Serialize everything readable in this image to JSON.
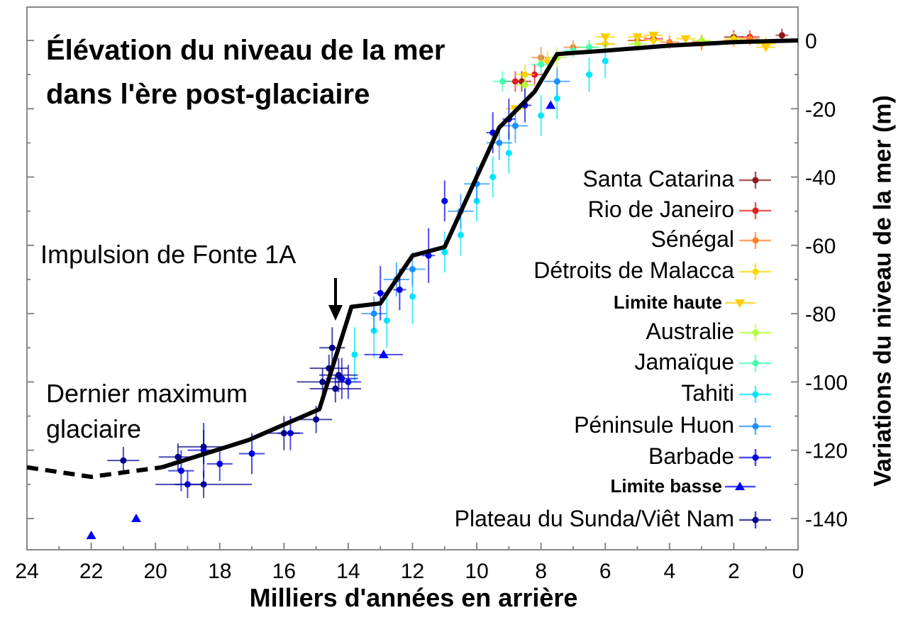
{
  "chart_data": {
    "type": "scatter",
    "title": [
      "Élévation du niveau de la mer",
      "dans l'ère post-glaciaire"
    ],
    "xlabel": "Milliers d'années en arrière",
    "ylabel": "Variations du niveau de la mer (m)",
    "xlim": [
      24,
      0
    ],
    "ylim": [
      -149,
      10
    ],
    "x_ticks": [
      24,
      22,
      20,
      18,
      16,
      14,
      12,
      10,
      8,
      6,
      4,
      2,
      0
    ],
    "y_ticks": [
      0,
      -20,
      -40,
      -60,
      -80,
      -100,
      -120,
      -140
    ],
    "grid": false,
    "legend_placement": "right",
    "annotations": [
      {
        "text": "Impulsion de Fonte 1A",
        "points_to": [
          14.4,
          -80
        ]
      },
      {
        "text": "Dernier maximum glaciaire"
      }
    ],
    "curve": {
      "dashed": [
        [
          24,
          -125
        ],
        [
          22,
          -127.8
        ],
        [
          21,
          -126.5
        ],
        [
          19.8,
          -125
        ]
      ],
      "solid": [
        [
          19.8,
          -125
        ],
        [
          17.1,
          -117
        ],
        [
          14.9,
          -108
        ],
        [
          13.9,
          -78
        ],
        [
          13,
          -77
        ],
        [
          12,
          -63
        ],
        [
          11,
          -60.5
        ],
        [
          9.3,
          -25.5
        ],
        [
          8.2,
          -15
        ],
        [
          7.5,
          -4
        ],
        [
          6,
          -3
        ],
        [
          4,
          -1.5
        ],
        [
          2,
          -0.5
        ],
        [
          0,
          0
        ]
      ]
    },
    "series": [
      {
        "name": "Santa Catarina",
        "marker": "dot",
        "color": "#8b1a1a",
        "points": [
          [
            8.6,
            -12,
            0.3,
            3
          ],
          [
            5,
            0,
            0.3,
            2
          ],
          [
            2,
            1,
            0.3,
            2
          ],
          [
            0.5,
            1.5,
            0.2,
            2
          ]
        ]
      },
      {
        "name": "Rio de Janeiro",
        "marker": "dot",
        "color": "#e31a1c",
        "points": [
          [
            8.8,
            -12,
            0.3,
            3
          ],
          [
            8.2,
            -10,
            0.3,
            3
          ],
          [
            4.5,
            0.5,
            0.3,
            2
          ],
          [
            3,
            -0.5,
            0.3,
            2
          ],
          [
            1.5,
            1,
            0.3,
            2
          ]
        ]
      },
      {
        "name": "Sénégal",
        "marker": "dot",
        "color": "#ff7f27",
        "points": [
          [
            8,
            -5,
            0.3,
            3
          ],
          [
            7,
            -2,
            0.3,
            2
          ],
          [
            6,
            -1,
            0.3,
            2
          ],
          [
            5,
            0,
            0.3,
            2
          ],
          [
            4,
            -0.5,
            0.3,
            2
          ],
          [
            3,
            -1,
            0.3,
            2
          ],
          [
            2,
            0,
            0.3,
            2
          ],
          [
            1.5,
            0.5,
            0.3,
            2
          ]
        ]
      },
      {
        "name": "Détroits de Malacca",
        "marker": "dot",
        "color": "#ffd700",
        "points": [
          [
            8.5,
            -10,
            0.3,
            3
          ],
          [
            7.8,
            -6,
            0.3,
            3
          ],
          [
            6,
            -1,
            0.3,
            2
          ],
          [
            4.5,
            0,
            0.3,
            2
          ],
          [
            2,
            0.5,
            0.3,
            2
          ],
          [
            1,
            -1,
            0.3,
            2
          ]
        ]
      },
      {
        "name": "Limite haute",
        "marker": "triangle-down",
        "color": "#ffcc00",
        "points": [
          [
            6,
            1,
            0.3,
            0
          ],
          [
            5,
            1,
            0.3,
            0
          ],
          [
            4.5,
            1.5,
            0.3,
            0
          ],
          [
            3.5,
            0.5,
            0.3,
            0
          ],
          [
            1,
            -2,
            0.3,
            0
          ],
          [
            8.8,
            -20,
            0.3,
            0
          ]
        ]
      },
      {
        "name": "Australie",
        "marker": "dot",
        "color": "#b3ff33",
        "points": [
          [
            8.5,
            -13,
            0.3,
            3
          ],
          [
            7.5,
            -5,
            0.3,
            3
          ],
          [
            6.5,
            -2,
            0.3,
            2
          ],
          [
            5,
            -1,
            0.3,
            2
          ],
          [
            3,
            0,
            0.3,
            2
          ]
        ]
      },
      {
        "name": "Jamaïque",
        "marker": "dot",
        "color": "#40ffb0",
        "points": [
          [
            9.2,
            -12,
            0.3,
            3
          ],
          [
            8,
            -7,
            0.3,
            3
          ],
          [
            7,
            -3,
            0.3,
            2
          ],
          [
            6.5,
            -2,
            0.3,
            2
          ]
        ]
      },
      {
        "name": "Tahiti",
        "marker": "dot",
        "color": "#00e5ff",
        "points": [
          [
            13.8,
            -92,
            0.1,
            8
          ],
          [
            13.2,
            -85,
            0.1,
            8
          ],
          [
            12.8,
            -82,
            0.1,
            8
          ],
          [
            12,
            -75,
            0.1,
            8
          ],
          [
            11,
            -62,
            0.1,
            6
          ],
          [
            10.5,
            -57,
            0.1,
            6
          ],
          [
            10,
            -47,
            0.1,
            6
          ],
          [
            9.5,
            -40,
            0.1,
            6
          ],
          [
            9,
            -33,
            0.1,
            6
          ],
          [
            8,
            -22,
            0.1,
            6
          ],
          [
            7.5,
            -17,
            0.1,
            6
          ],
          [
            6.5,
            -10,
            0.1,
            5
          ],
          [
            6,
            -6,
            0.1,
            5
          ]
        ]
      },
      {
        "name": "Péninsule Huon",
        "marker": "dot",
        "color": "#1e90ff",
        "points": [
          [
            13.2,
            -80,
            0.4,
            5
          ],
          [
            12.5,
            -70,
            0.4,
            5
          ],
          [
            12,
            -67,
            0.4,
            5
          ],
          [
            10.5,
            -50,
            0.4,
            5
          ],
          [
            10,
            -42,
            0.4,
            5
          ],
          [
            9.3,
            -30,
            0.4,
            5
          ],
          [
            8.8,
            -25,
            0.4,
            5
          ],
          [
            7.5,
            -12,
            0.4,
            4
          ]
        ]
      },
      {
        "name": "Barbade",
        "marker": "dot",
        "color": "#0000e0",
        "points": [
          [
            19.2,
            -126,
            0.4,
            6
          ],
          [
            19,
            -130,
            0.4,
            4
          ],
          [
            18.5,
            -120,
            0.5,
            8
          ],
          [
            18,
            -124,
            0.4,
            5
          ],
          [
            17,
            -121,
            0.4,
            6
          ],
          [
            15.8,
            -115,
            0.4,
            5
          ],
          [
            14.2,
            -99,
            0.5,
            6
          ],
          [
            14,
            -100,
            0.4,
            5
          ],
          [
            13,
            -74,
            0.2,
            8
          ],
          [
            12.4,
            -73,
            0.2,
            6
          ],
          [
            11.5,
            -63,
            0.2,
            8
          ],
          [
            11,
            -47,
            0.1,
            6
          ],
          [
            9.5,
            -27,
            0.2,
            6
          ],
          [
            9,
            -23,
            0.2,
            6
          ],
          [
            8.5,
            -19,
            0.2,
            5
          ]
        ]
      },
      {
        "name": "Limite basse",
        "marker": "triangle-up",
        "color": "#0000ff",
        "points": [
          [
            22,
            -145,
            0,
            0
          ],
          [
            20.6,
            -140,
            0,
            0
          ],
          [
            12.9,
            -92,
            0.6,
            0
          ],
          [
            7.7,
            -19,
            0,
            0
          ]
        ]
      },
      {
        "name": "Plateau du Sunda/Viêt Nam",
        "marker": "dot",
        "color": "#00008b",
        "points": [
          [
            21,
            -123,
            0.5,
            4
          ],
          [
            19.3,
            -122,
            0.6,
            4
          ],
          [
            18.5,
            -130,
            1.5,
            4
          ],
          [
            16,
            -115,
            0.5,
            5
          ],
          [
            15,
            -111,
            0.5,
            4
          ],
          [
            14.8,
            -100,
            0.8,
            4
          ],
          [
            14.6,
            -96,
            0.6,
            4
          ],
          [
            14.5,
            -90,
            0.4,
            6
          ],
          [
            14.4,
            -102,
            0.8,
            4
          ],
          [
            14.3,
            -98,
            0.6,
            5
          ],
          [
            18.5,
            -119,
            0.8,
            5
          ]
        ]
      }
    ]
  }
}
